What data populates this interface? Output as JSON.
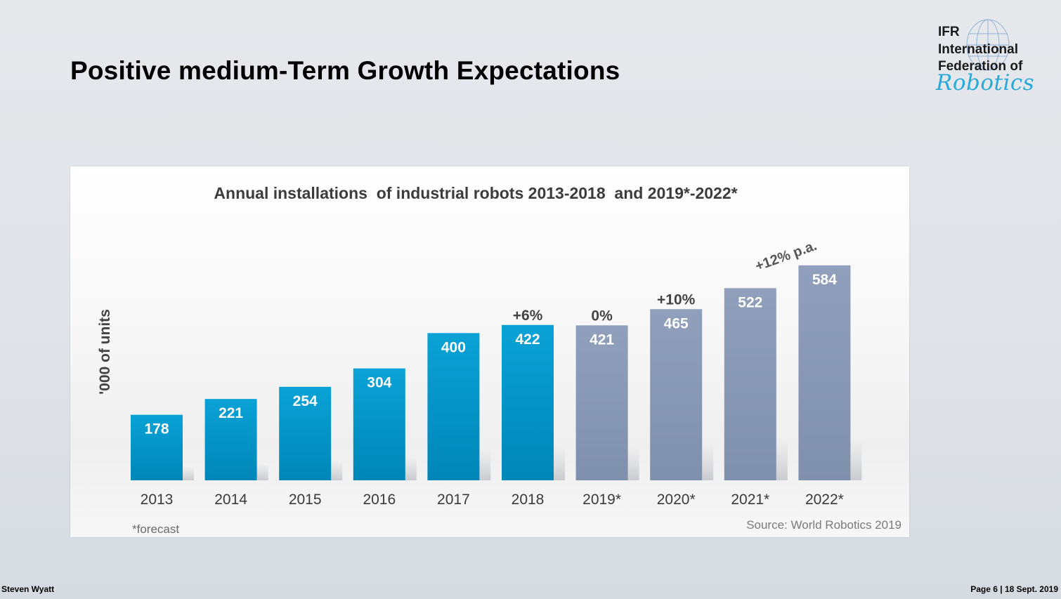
{
  "slide": {
    "title": "Positive medium-Term Growth Expectations",
    "footer_left": "Steven Wyatt",
    "footer_right": "Page 6 | 18 Sept. 2019"
  },
  "logo": {
    "lines": [
      "IFR",
      "International",
      "Federation of"
    ],
    "script": "Robotics",
    "icon": "globe-icon"
  },
  "chart_data": {
    "type": "bar",
    "title": "Annual installations  of industrial robots 2013-2018  and 2019*-2022*",
    "ylabel": "'000 of units",
    "xlabel": "",
    "categories": [
      "2013",
      "2014",
      "2015",
      "2016",
      "2017",
      "2018",
      "2019*",
      "2020*",
      "2021*",
      "2022*"
    ],
    "values": [
      178,
      221,
      254,
      304,
      400,
      422,
      421,
      465,
      522,
      584
    ],
    "forecast": [
      false,
      false,
      false,
      false,
      false,
      false,
      true,
      true,
      true,
      true
    ],
    "ylim": [
      0,
      620
    ],
    "grid": false,
    "colors": {
      "actual": "#0098cc",
      "forecast": "#8a9bb8",
      "label": "#ffffff"
    },
    "annotations": [
      {
        "text": "+6%",
        "category": "2018"
      },
      {
        "text": "0%",
        "category": "2019*"
      },
      {
        "text": "+10%",
        "category": "2020*"
      },
      {
        "text": "+12% p.a.",
        "category": "2021*",
        "rotated": true
      }
    ],
    "footnote": "*forecast",
    "source": "Source: World Robotics 2019"
  }
}
